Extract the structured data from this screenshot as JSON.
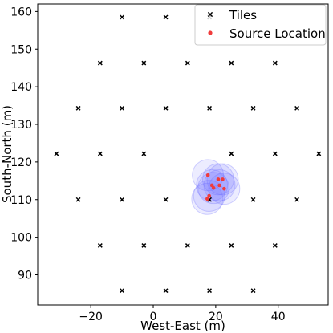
{
  "chart_data": {
    "type": "scatter",
    "xlabel": "West-East (m)",
    "ylabel": "South-North (m)",
    "xlim": [
      -37,
      56
    ],
    "ylim": [
      82,
      162
    ],
    "xticks": [
      -20,
      0,
      20,
      40
    ],
    "yticks": [
      90,
      100,
      110,
      120,
      130,
      140,
      150,
      160
    ],
    "grid": false,
    "legend_position": "top-right",
    "series": [
      {
        "name": "Tiles",
        "marker": "x",
        "color": "#000000",
        "points": [
          [
            -10,
            158.5
          ],
          [
            4,
            158.5
          ],
          [
            18,
            158.5
          ],
          [
            -17,
            146.3
          ],
          [
            -3,
            146.3
          ],
          [
            11,
            146.3
          ],
          [
            25,
            146.3
          ],
          [
            39,
            146.3
          ],
          [
            -24,
            134.3
          ],
          [
            -10,
            134.3
          ],
          [
            4,
            134.3
          ],
          [
            18,
            134.3
          ],
          [
            32,
            134.3
          ],
          [
            46,
            134.3
          ],
          [
            -31,
            122.2
          ],
          [
            -17,
            122.2
          ],
          [
            -3,
            122.2
          ],
          [
            25,
            122.2
          ],
          [
            39,
            122.2
          ],
          [
            53,
            122.2
          ],
          [
            -24,
            110
          ],
          [
            -10,
            110
          ],
          [
            4,
            110
          ],
          [
            18,
            110
          ],
          [
            32,
            110
          ],
          [
            46,
            110
          ],
          [
            -17,
            97.8
          ],
          [
            -3,
            97.8
          ],
          [
            11,
            97.8
          ],
          [
            25,
            97.8
          ],
          [
            39,
            97.8
          ],
          [
            -10,
            85.8
          ],
          [
            4,
            85.8
          ],
          [
            18,
            85.8
          ],
          [
            32,
            85.8
          ]
        ]
      },
      {
        "name": "Source Location",
        "marker": "o",
        "color": "#f03c3c",
        "points": [
          [
            17.5,
            116.5
          ],
          [
            20.8,
            115.4
          ],
          [
            22.2,
            115.4
          ],
          [
            18.8,
            113.8
          ],
          [
            21.2,
            113.8
          ],
          [
            19.3,
            113.1
          ],
          [
            22.7,
            112.9
          ],
          [
            17.9,
            111.0
          ],
          [
            17.3,
            110.2
          ]
        ]
      }
    ],
    "uncertainty_discs": {
      "color": "#6b6bff",
      "radius_m": 5,
      "centers": [
        [
          17.5,
          116.5
        ],
        [
          20.8,
          115.4
        ],
        [
          22.2,
          115.4
        ],
        [
          18.8,
          113.8
        ],
        [
          21.2,
          113.8
        ],
        [
          19.3,
          113.1
        ],
        [
          22.7,
          112.9
        ],
        [
          17.9,
          111.0
        ],
        [
          17.3,
          110.2
        ]
      ]
    }
  }
}
